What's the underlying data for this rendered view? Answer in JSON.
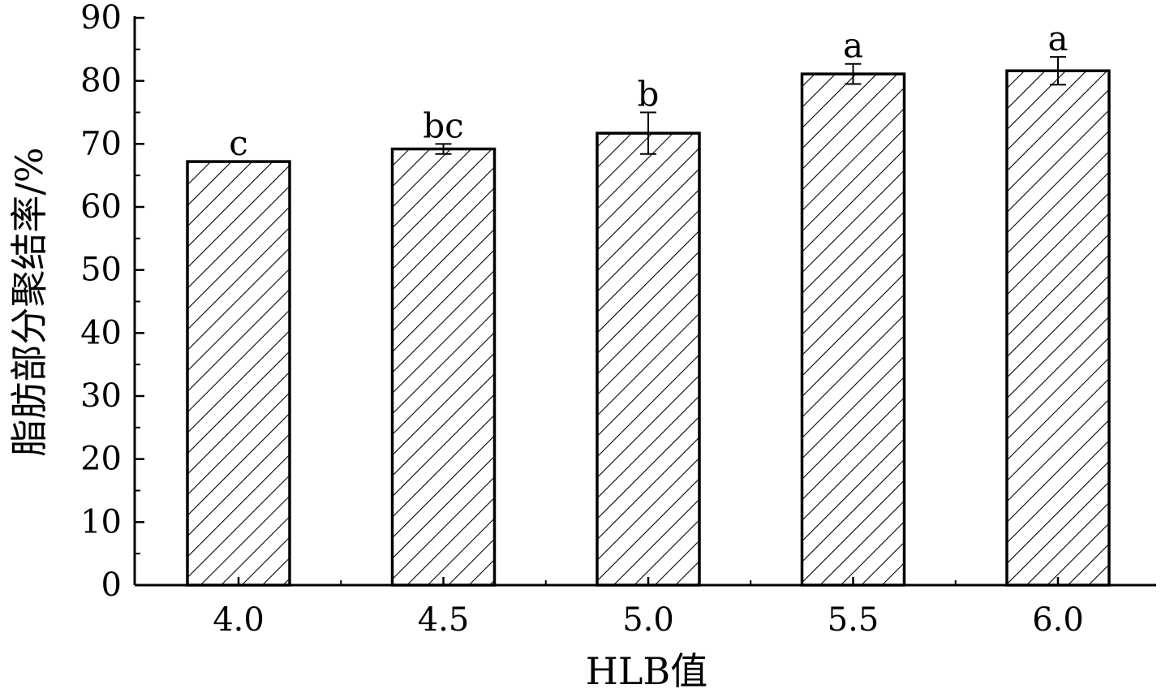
{
  "chart_data": {
    "type": "bar",
    "categories": [
      "4.0",
      "4.5",
      "5.0",
      "5.5",
      "6.0"
    ],
    "values": [
      67.2,
      69.2,
      71.7,
      81.1,
      81.6
    ],
    "errors": [
      0.0,
      0.8,
      3.3,
      1.6,
      2.2
    ],
    "significance_labels": [
      "c",
      "bc",
      "b",
      "a",
      "a"
    ],
    "xlabel": "HLB值",
    "ylabel": "脂肪部分聚结率/%",
    "ylim": [
      0,
      90
    ],
    "yticks": [
      "0",
      "10",
      "20",
      "30",
      "40",
      "50",
      "60",
      "70",
      "80",
      "90"
    ],
    "bar_fill": "hatched",
    "grid": false,
    "colors": {
      "bar_edge": "#000000",
      "hatch": "#000000",
      "background": "#ffffff"
    }
  }
}
